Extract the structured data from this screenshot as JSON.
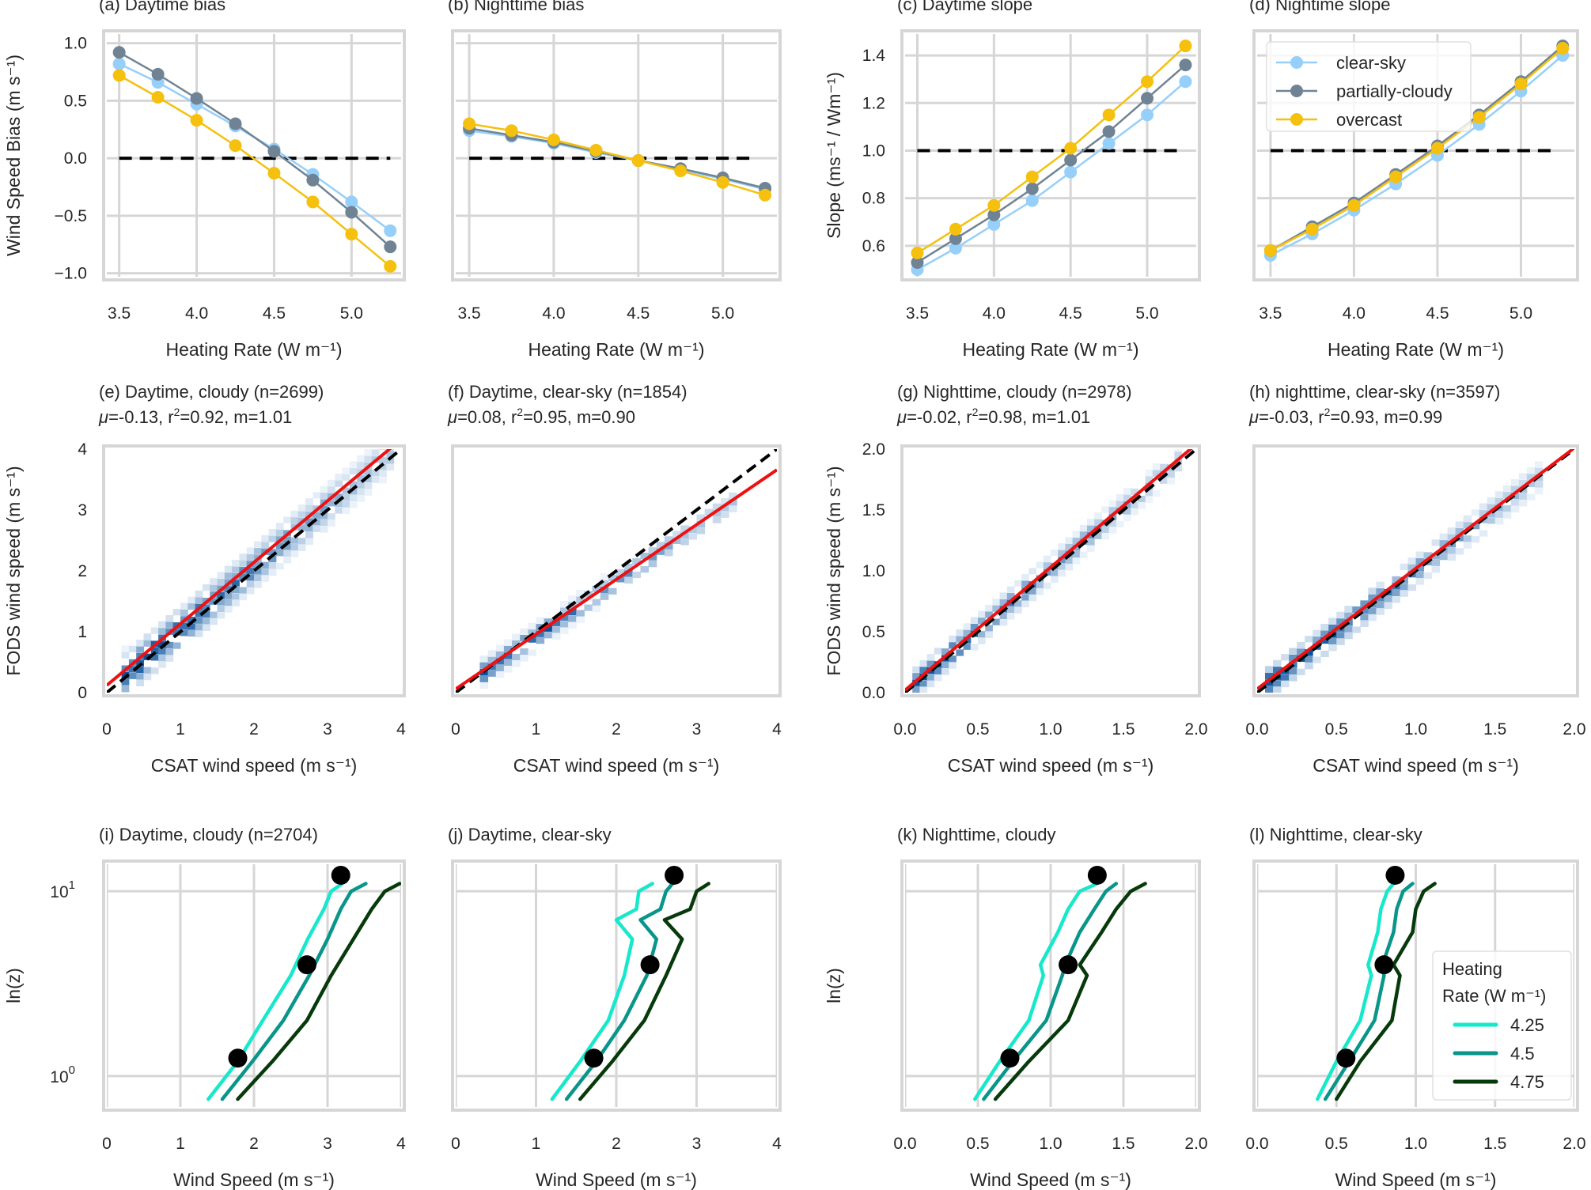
{
  "chart_data": [
    {
      "id": "a",
      "type": "line",
      "title": "(a) Daytime bias",
      "xlabel": "Heating Rate (W m⁻¹)",
      "ylabel": "Wind Speed Bias (m s⁻¹)",
      "xlim": [
        3.42,
        5.32
      ],
      "ylim": [
        -1.03,
        1.08
      ],
      "xticks": [
        3.5,
        4.0,
        4.5,
        5.0
      ],
      "xtick_labels": [
        "3.5",
        "4.0",
        "4.5",
        "5.0"
      ],
      "yticks": [
        -1.0,
        -0.5,
        0.0,
        0.5,
        1.0
      ],
      "ytick_labels": [
        "−1.0",
        "−0.5",
        "0.0",
        "0.5",
        "1.0"
      ],
      "x": [
        3.5,
        3.75,
        4.0,
        4.25,
        4.5,
        4.75,
        5.0,
        5.25
      ],
      "reference_line": {
        "value": 0.0,
        "style": "dashed",
        "x_range": [
          3.5,
          5.25
        ]
      },
      "series": [
        {
          "name": "clear-sky",
          "values": [
            0.82,
            0.66,
            0.47,
            0.28,
            0.08,
            -0.14,
            -0.38,
            -0.63
          ]
        },
        {
          "name": "partially-cloudy",
          "values": [
            0.92,
            0.73,
            0.52,
            0.3,
            0.06,
            -0.19,
            -0.47,
            -0.77
          ]
        },
        {
          "name": "overcast",
          "values": [
            0.72,
            0.53,
            0.33,
            0.11,
            -0.13,
            -0.38,
            -0.66,
            -0.94
          ]
        }
      ],
      "grid": true
    },
    {
      "id": "b",
      "type": "line",
      "title": "(b) Nighttime bias",
      "xlabel": "Heating Rate (W m⁻¹)",
      "ylabel": "",
      "xlim": [
        3.42,
        5.32
      ],
      "ylim": [
        -1.03,
        1.08
      ],
      "xticks": [
        3.5,
        4.0,
        4.5,
        5.0
      ],
      "xtick_labels": [
        "3.5",
        "4.0",
        "4.5",
        "5.0"
      ],
      "yticks": [
        -1.0,
        -0.5,
        0.0,
        0.5,
        1.0
      ],
      "ytick_labels": [],
      "x": [
        3.5,
        3.75,
        4.0,
        4.25,
        4.5,
        4.75,
        5.0,
        5.25
      ],
      "reference_line": {
        "value": 0.0,
        "style": "dashed",
        "x_range": [
          3.5,
          5.2
        ]
      },
      "series": [
        {
          "name": "clear-sky",
          "values": [
            0.24,
            0.19,
            0.13,
            0.05,
            -0.02,
            -0.1,
            -0.18,
            -0.27
          ]
        },
        {
          "name": "partially-cloudy",
          "values": [
            0.26,
            0.2,
            0.14,
            0.06,
            -0.02,
            -0.09,
            -0.17,
            -0.26
          ]
        },
        {
          "name": "overcast",
          "values": [
            0.3,
            0.24,
            0.16,
            0.07,
            -0.02,
            -0.11,
            -0.21,
            -0.32
          ]
        }
      ],
      "grid": true
    },
    {
      "id": "c",
      "type": "line",
      "title": "(c) Daytime slope",
      "xlabel": "Heating Rate (W m⁻¹)",
      "ylabel": "Slope (ms⁻¹ / Wm⁻¹)",
      "xlim": [
        3.42,
        5.32
      ],
      "ylim": [
        0.47,
        1.49
      ],
      "xticks": [
        3.5,
        4.0,
        4.5,
        5.0
      ],
      "xtick_labels": [
        "3.5",
        "4.0",
        "4.5",
        "5.0"
      ],
      "yticks": [
        0.6,
        0.8,
        1.0,
        1.2,
        1.4
      ],
      "ytick_labels": [
        "0.6",
        "0.8",
        "1.0",
        "1.2",
        "1.4"
      ],
      "x": [
        3.5,
        3.75,
        4.0,
        4.25,
        4.5,
        4.75,
        5.0,
        5.25
      ],
      "reference_line": {
        "value": 1.0,
        "style": "dashed",
        "x_range": [
          3.5,
          5.2
        ]
      },
      "series": [
        {
          "name": "clear-sky",
          "values": [
            0.5,
            0.59,
            0.69,
            0.79,
            0.91,
            1.03,
            1.15,
            1.29
          ]
        },
        {
          "name": "partially-cloudy",
          "values": [
            0.53,
            0.63,
            0.73,
            0.84,
            0.96,
            1.08,
            1.22,
            1.36
          ]
        },
        {
          "name": "overcast",
          "values": [
            0.57,
            0.67,
            0.77,
            0.89,
            1.01,
            1.15,
            1.29,
            1.44
          ]
        }
      ],
      "grid": true
    },
    {
      "id": "d",
      "type": "line",
      "title": "(d) Nightime slope",
      "xlabel": "Heating Rate (W m⁻¹)",
      "ylabel": "",
      "xlim": [
        3.42,
        5.32
      ],
      "ylim": [
        0.47,
        1.49
      ],
      "xticks": [
        3.5,
        4.0,
        4.5,
        5.0
      ],
      "xtick_labels": [
        "3.5",
        "4.0",
        "4.5",
        "5.0"
      ],
      "yticks": [
        0.6,
        0.8,
        1.0,
        1.2,
        1.4
      ],
      "ytick_labels": [],
      "x": [
        3.5,
        3.75,
        4.0,
        4.25,
        4.5,
        4.75,
        5.0,
        5.25
      ],
      "reference_line": {
        "value": 1.0,
        "style": "dashed",
        "x_range": [
          3.5,
          5.2
        ]
      },
      "series": [
        {
          "name": "clear-sky",
          "values": [
            0.56,
            0.65,
            0.75,
            0.86,
            0.98,
            1.11,
            1.25,
            1.4
          ]
        },
        {
          "name": "partially-cloudy",
          "values": [
            0.58,
            0.68,
            0.78,
            0.9,
            1.02,
            1.15,
            1.29,
            1.44
          ]
        },
        {
          "name": "overcast",
          "values": [
            0.58,
            0.67,
            0.77,
            0.89,
            1.01,
            1.14,
            1.28,
            1.43
          ]
        }
      ],
      "legend": {
        "entries": [
          "clear-sky",
          "partially-cloudy",
          "overcast"
        ],
        "placement": "top-left"
      },
      "grid": true
    },
    {
      "id": "e",
      "type": "heatmap",
      "title": "(e) Daytime, cloudy (n=2699)",
      "subtitle": {
        "mu": "-0.13",
        "r2": "0.92",
        "m": "1.01"
      },
      "xlabel": "CSAT wind speed (m s⁻¹)",
      "ylabel": "FODS wind speed (m s⁻¹)",
      "xlim": [
        0,
        4
      ],
      "ylim": [
        0,
        4
      ],
      "xticks": [
        0,
        1,
        2,
        3,
        4
      ],
      "xtick_labels": [
        "0",
        "1",
        "2",
        "3",
        "4"
      ],
      "yticks": [
        0,
        1,
        2,
        3,
        4
      ],
      "ytick_labels": [
        "0",
        "1",
        "2",
        "3",
        "4"
      ],
      "fit_line": {
        "slope": 1.01,
        "intercept": 0.12
      },
      "one_to_one": true,
      "density_spread": 0.22,
      "density_extent": [
        0.2,
        3.9
      ],
      "grid": false
    },
    {
      "id": "f",
      "type": "heatmap",
      "title": "(f) Daytime, clear-sky (n=1854)",
      "subtitle": {
        "mu": "0.08",
        "r2": "0.95",
        "m": "0.90"
      },
      "xlabel": "CSAT wind speed (m s⁻¹)",
      "ylabel": "",
      "xlim": [
        0,
        4
      ],
      "ylim": [
        0,
        4
      ],
      "xticks": [
        0,
        1,
        2,
        3,
        4
      ],
      "xtick_labels": [
        "0",
        "1",
        "2",
        "3",
        "4"
      ],
      "yticks": [],
      "ytick_labels": [],
      "fit_line": {
        "slope": 0.9,
        "intercept": 0.06
      },
      "one_to_one": true,
      "density_spread": 0.12,
      "density_extent": [
        0.3,
        3.5
      ],
      "grid": false
    },
    {
      "id": "g",
      "type": "heatmap",
      "title": "(g) Nighttime, cloudy (n=2978)",
      "subtitle": {
        "mu": "-0.02",
        "r2": "0.98",
        "m": "1.01"
      },
      "xlabel": "CSAT wind speed (m s⁻¹)",
      "ylabel": "FODS wind speed (m s⁻¹)",
      "xlim": [
        0,
        2
      ],
      "ylim": [
        0,
        2
      ],
      "xticks": [
        0,
        0.5,
        1.0,
        1.5,
        2.0
      ],
      "xtick_labels": [
        "0.0",
        "0.5",
        "1.0",
        "1.5",
        "2.0"
      ],
      "yticks": [
        0,
        0.5,
        1.0,
        1.5,
        2.0
      ],
      "ytick_labels": [
        "0.0",
        "0.5",
        "1.0",
        "1.5",
        "2.0"
      ],
      "fit_line": {
        "slope": 1.01,
        "intercept": 0.02
      },
      "one_to_one": true,
      "density_spread": 0.07,
      "density_extent": [
        0.05,
        1.9
      ],
      "grid": false
    },
    {
      "id": "h",
      "type": "heatmap",
      "title": "(h) nighttime, clear-sky (n=3597)",
      "subtitle": {
        "mu": "-0.03",
        "r2": "0.93",
        "m": "0.99"
      },
      "xlabel": "CSAT wind speed (m s⁻¹)",
      "ylabel": "",
      "xlim": [
        0,
        2
      ],
      "ylim": [
        0,
        2
      ],
      "xticks": [
        0,
        0.5,
        1.0,
        1.5,
        2.0
      ],
      "xtick_labels": [
        "0.0",
        "0.5",
        "1.0",
        "1.5",
        "2.0"
      ],
      "yticks": [],
      "ytick_labels": [],
      "fit_line": {
        "slope": 0.99,
        "intercept": 0.03
      },
      "one_to_one": true,
      "density_spread": 0.08,
      "density_extent": [
        0.05,
        1.8
      ],
      "grid": false
    },
    {
      "id": "i",
      "type": "line",
      "title": "(i) Daytime, cloudy (n=2704)",
      "xlabel": "Wind Speed (m s⁻¹)",
      "ylabel": "ln(z)",
      "yscale": "log",
      "xlim": [
        0,
        4
      ],
      "ylim": [
        0.68,
        14.0
      ],
      "xticks": [
        0,
        1,
        2,
        3,
        4
      ],
      "xtick_labels": [
        "0",
        "1",
        "2",
        "3",
        "4"
      ],
      "yticks": [
        1,
        10
      ],
      "ytick_labels": [
        "10⁰",
        "10¹"
      ],
      "profile_heights": [
        0.75,
        1.2,
        2.0,
        3.5,
        5.5,
        8.0,
        10.0,
        11.0
      ],
      "series": [
        {
          "name": "4.25",
          "values": [
            1.38,
            1.78,
            2.12,
            2.5,
            2.73,
            2.95,
            3.05,
            3.2
          ]
        },
        {
          "name": "4.5",
          "values": [
            1.57,
            1.98,
            2.4,
            2.75,
            3.0,
            3.18,
            3.32,
            3.52
          ]
        },
        {
          "name": "4.75",
          "values": [
            1.78,
            2.25,
            2.72,
            3.05,
            3.35,
            3.6,
            3.78,
            3.98
          ]
        }
      ],
      "markers": [
        {
          "x": 1.78,
          "y": 1.25
        },
        {
          "x": 2.72,
          "y": 4.0
        },
        {
          "x": 3.18,
          "y": 12.2
        }
      ],
      "grid": true
    },
    {
      "id": "j",
      "type": "line",
      "title": "(j) Daytime, clear-sky",
      "xlabel": "Wind Speed (m s⁻¹)",
      "ylabel": "",
      "yscale": "log",
      "xlim": [
        0,
        4
      ],
      "ylim": [
        0.68,
        14.0
      ],
      "xticks": [
        0,
        1,
        2,
        3,
        4
      ],
      "xtick_labels": [
        "0",
        "1",
        "2",
        "3",
        "4"
      ],
      "yticks": [
        1,
        10
      ],
      "ytick_labels": [],
      "profile_heights": [
        0.75,
        1.2,
        2.0,
        3.5,
        5.5,
        7.0,
        8.0,
        10.0,
        11.0
      ],
      "series": [
        {
          "name": "4.25",
          "values": [
            1.2,
            1.55,
            1.9,
            2.1,
            2.2,
            2.0,
            2.25,
            2.28,
            2.45
          ]
        },
        {
          "name": "4.5",
          "values": [
            1.38,
            1.75,
            2.1,
            2.38,
            2.5,
            2.3,
            2.55,
            2.62,
            2.7
          ]
        },
        {
          "name": "4.75",
          "values": [
            1.55,
            1.95,
            2.35,
            2.62,
            2.82,
            2.6,
            2.92,
            3.0,
            3.15
          ]
        }
      ],
      "markers": [
        {
          "x": 1.72,
          "y": 1.25
        },
        {
          "x": 2.42,
          "y": 4.0
        },
        {
          "x": 2.72,
          "y": 12.2
        }
      ],
      "grid": true
    },
    {
      "id": "k",
      "type": "line",
      "title": "(k) Nighttime, cloudy",
      "xlabel": "Wind Speed (m s⁻¹)",
      "ylabel": "ln(z)",
      "yscale": "log",
      "xlim": [
        0,
        2
      ],
      "ylim": [
        0.68,
        14.0
      ],
      "xticks": [
        0,
        0.5,
        1.0,
        1.5,
        2.0
      ],
      "xtick_labels": [
        "0.0",
        "0.5",
        "1.0",
        "1.5",
        "2.0"
      ],
      "yticks": [
        1,
        10
      ],
      "ytick_labels": [],
      "profile_heights": [
        0.75,
        1.2,
        2.0,
        3.5,
        4.0,
        6.0,
        8.0,
        10.0,
        11.0
      ],
      "series": [
        {
          "name": "4.25",
          "values": [
            0.48,
            0.65,
            0.85,
            0.95,
            0.93,
            1.05,
            1.12,
            1.2,
            1.32
          ]
        },
        {
          "name": "4.5",
          "values": [
            0.54,
            0.74,
            0.97,
            1.08,
            1.1,
            1.2,
            1.3,
            1.38,
            1.45
          ]
        },
        {
          "name": "4.75",
          "values": [
            0.62,
            0.85,
            1.12,
            1.25,
            1.2,
            1.35,
            1.45,
            1.55,
            1.65
          ]
        }
      ],
      "markers": [
        {
          "x": 0.72,
          "y": 1.25
        },
        {
          "x": 1.12,
          "y": 4.0
        },
        {
          "x": 1.32,
          "y": 12.2
        }
      ],
      "grid": true
    },
    {
      "id": "l",
      "type": "line",
      "title": "(l) Nighttime, clear-sky",
      "xlabel": "Wind Speed (m s⁻¹)",
      "ylabel": "",
      "yscale": "log",
      "xlim": [
        0,
        2
      ],
      "ylim": [
        0.68,
        14.0
      ],
      "xticks": [
        0,
        0.5,
        1.0,
        1.5,
        2.0
      ],
      "xtick_labels": [
        "0.0",
        "0.5",
        "1.0",
        "1.5",
        "2.0"
      ],
      "yticks": [
        1,
        10
      ],
      "ytick_labels": [],
      "profile_heights": [
        0.75,
        1.2,
        2.0,
        3.5,
        4.0,
        6.0,
        8.0,
        10.0,
        11.0
      ],
      "series": [
        {
          "name": "4.25",
          "values": [
            0.38,
            0.5,
            0.65,
            0.72,
            0.7,
            0.76,
            0.78,
            0.82,
            0.86
          ]
        },
        {
          "name": "4.5",
          "values": [
            0.43,
            0.58,
            0.74,
            0.8,
            0.79,
            0.86,
            0.88,
            0.92,
            0.98
          ]
        },
        {
          "name": "4.75",
          "values": [
            0.5,
            0.65,
            0.85,
            0.9,
            0.86,
            0.98,
            1.0,
            1.05,
            1.12
          ]
        }
      ],
      "markers": [
        {
          "x": 0.56,
          "y": 1.25
        },
        {
          "x": 0.8,
          "y": 4.0
        },
        {
          "x": 0.87,
          "y": 12.2
        }
      ],
      "legend": {
        "title": "Heating Rate (W m⁻¹)",
        "entries": [
          "4.25",
          "4.5",
          "4.75"
        ],
        "placement": "center-right"
      },
      "grid": true
    }
  ],
  "colors": {
    "clear-sky": "#95cffa",
    "partially-cloudy": "#708394",
    "overcast": "#f5c00e",
    "hr_4.25": "#17e8cc",
    "hr_4.5": "#0a958a",
    "hr_4.75": "#073a0b",
    "fit": "#ee1111",
    "reference": "#000000",
    "grid": "#d6d6d6",
    "text": "#262626"
  },
  "legend_top": {
    "entries": [
      "clear-sky",
      "partially-cloudy",
      "overcast"
    ]
  },
  "legend_bottom": {
    "title_line1": "Heating",
    "title_line2": "Rate (W m⁻¹)",
    "entries": [
      "4.25",
      "4.5",
      "4.75"
    ]
  }
}
